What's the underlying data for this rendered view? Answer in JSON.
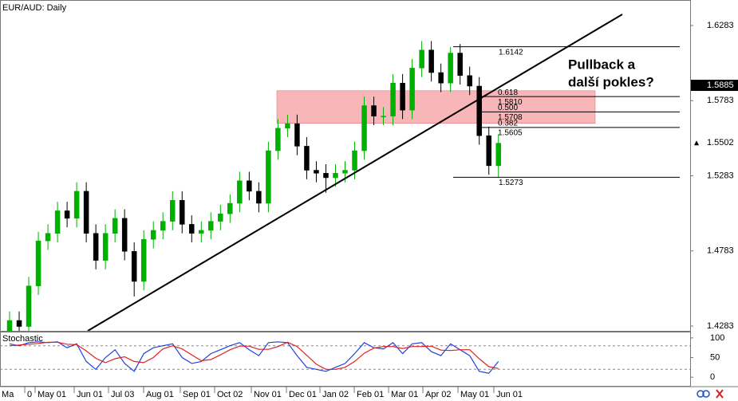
{
  "chart_data": {
    "type": "candlestick",
    "title": "EUR/AUD: Daily",
    "xlim": [
      -1,
      71
    ],
    "xticks": [
      {
        "value": -0.83,
        "label": "Ma"
      },
      {
        "value": 1.83,
        "label": "0"
      },
      {
        "value": 2.91,
        "label": "May 01"
      },
      {
        "value": 6.99,
        "label": "Jun 01"
      },
      {
        "value": 10.57,
        "label": "Jul 03"
      },
      {
        "value": 14.23,
        "label": "Aug 01"
      },
      {
        "value": 18.06,
        "label": "Sep 01"
      },
      {
        "value": 21.64,
        "label": "Oct 02"
      },
      {
        "value": 25.47,
        "label": "Nov 01"
      },
      {
        "value": 29.13,
        "label": "Dec 01"
      },
      {
        "value": 32.63,
        "label": "Jan 02"
      },
      {
        "value": 36.21,
        "label": "Feb 01"
      },
      {
        "value": 39.79,
        "label": "Mar 01"
      },
      {
        "value": 43.37,
        "label": "Apr 02"
      },
      {
        "value": 47.03,
        "label": "May 01"
      },
      {
        "value": 50.77,
        "label": "Jun 01"
      }
    ],
    "ylim": [
      1.4251,
      1.6453
    ],
    "yticks": [
      1.6283,
      1.5783,
      1.5283,
      1.4783,
      1.4283
    ],
    "up_color": "#00b000",
    "down_color": "#000000",
    "open": [
      1.425,
      1.432,
      1.428,
      1.455,
      1.485,
      1.49,
      1.505,
      1.5,
      1.518,
      1.49,
      1.472,
      1.49,
      1.5,
      1.478,
      1.458,
      1.486,
      1.492,
      1.498,
      1.512,
      1.496,
      1.49,
      1.492,
      1.498,
      1.503,
      1.51,
      1.525,
      1.518,
      1.51,
      1.545,
      1.56,
      1.563,
      1.548,
      1.532,
      1.53,
      1.527,
      1.53,
      1.532,
      1.545,
      1.575,
      1.568,
      1.568,
      1.59,
      1.572,
      1.6,
      1.612,
      1.597,
      1.59,
      1.61,
      1.595,
      1.588,
      1.555,
      1.535
    ],
    "high": [
      1.438,
      1.438,
      1.461,
      1.491,
      1.496,
      1.511,
      1.511,
      1.524,
      1.524,
      1.496,
      1.496,
      1.506,
      1.506,
      1.484,
      1.492,
      1.498,
      1.504,
      1.518,
      1.518,
      1.502,
      1.498,
      1.504,
      1.509,
      1.516,
      1.531,
      1.531,
      1.524,
      1.551,
      1.566,
      1.569,
      1.569,
      1.554,
      1.538,
      1.536,
      1.536,
      1.538,
      1.551,
      1.581,
      1.581,
      1.574,
      1.596,
      1.596,
      1.606,
      1.618,
      1.618,
      1.603,
      1.614,
      1.616,
      1.601,
      1.594,
      1.561,
      1.556
    ],
    "low": [
      1.419,
      1.422,
      1.422,
      1.449,
      1.479,
      1.484,
      1.494,
      1.494,
      1.484,
      1.466,
      1.466,
      1.484,
      1.472,
      1.448,
      1.452,
      1.48,
      1.486,
      1.492,
      1.49,
      1.484,
      1.484,
      1.486,
      1.492,
      1.497,
      1.504,
      1.512,
      1.504,
      1.504,
      1.539,
      1.554,
      1.542,
      1.526,
      1.524,
      1.517,
      1.521,
      1.524,
      1.526,
      1.539,
      1.562,
      1.562,
      1.562,
      1.566,
      1.566,
      1.594,
      1.591,
      1.584,
      1.584,
      1.589,
      1.582,
      1.549,
      1.529,
      1.527
    ],
    "close": [
      1.432,
      1.428,
      1.455,
      1.485,
      1.49,
      1.505,
      1.5,
      1.518,
      1.49,
      1.472,
      1.49,
      1.5,
      1.478,
      1.458,
      1.486,
      1.492,
      1.498,
      1.512,
      1.496,
      1.49,
      1.492,
      1.498,
      1.503,
      1.51,
      1.525,
      1.518,
      1.51,
      1.545,
      1.56,
      1.563,
      1.548,
      1.532,
      1.53,
      1.527,
      1.53,
      1.532,
      1.545,
      1.575,
      1.568,
      1.568,
      1.59,
      1.572,
      1.6,
      1.612,
      1.597,
      1.59,
      1.61,
      1.595,
      1.588,
      1.555,
      1.535,
      1.55
    ],
    "price_markers": [
      1.5885,
      1.5502
    ],
    "zone": {
      "low": 1.5632,
      "high": 1.5849,
      "color": "#f7a9ac"
    },
    "fibonacci": {
      "high": 1.6142,
      "low": 1.5273,
      "levels": [
        {
          "ratio": 0.618,
          "price": {
            "value": 1.581,
            "label": "1.5810"
          }
        },
        {
          "ratio": {
            "value": 0.5,
            "label": "0.500"
          },
          "price": 1.5708
        },
        {
          "ratio": 0.382,
          "price": 1.5605
        }
      ]
    },
    "annotation": [
      "Pullback a",
      "další pokles?"
    ],
    "stochastic": {
      "title": "Stochastic",
      "ylim": [
        -22,
        116
      ],
      "yticks": [
        100,
        50,
        0
      ],
      "levels": [
        80,
        20
      ],
      "series": [
        {
          "color": "#2040e0",
          "values": [
            85,
            80,
            88,
            90,
            88,
            90,
            75,
            85,
            40,
            20,
            50,
            70,
            35,
            15,
            60,
            75,
            80,
            85,
            50,
            35,
            40,
            60,
            70,
            80,
            88,
            70,
            55,
            88,
            90,
            88,
            55,
            25,
            20,
            15,
            25,
            35,
            60,
            88,
            75,
            72,
            88,
            60,
            85,
            88,
            65,
            55,
            85,
            70,
            55,
            15,
            10,
            40
          ]
        },
        {
          "color": "#e02020",
          "values": [
            80,
            82,
            84,
            86,
            89,
            89,
            84,
            83,
            67,
            48,
            37,
            47,
            52,
            40,
            37,
            50,
            72,
            80,
            72,
            57,
            42,
            45,
            57,
            70,
            79,
            79,
            71,
            71,
            78,
            89,
            78,
            56,
            33,
            20,
            20,
            25,
            40,
            61,
            74,
            78,
            78,
            73,
            78,
            78,
            79,
            69,
            68,
            70,
            70,
            47,
            27,
            22
          ]
        }
      ]
    }
  }
}
